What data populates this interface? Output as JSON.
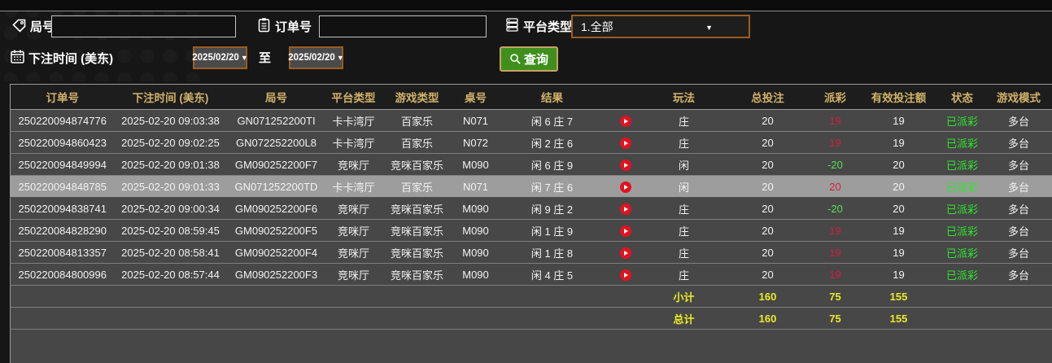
{
  "form": {
    "game_no": {
      "label": "局号",
      "value": "",
      "placeholder": ""
    },
    "order_no": {
      "label": "订单号",
      "value": "",
      "placeholder": ""
    },
    "platform": {
      "label": "平台类型",
      "value": "1.全部"
    },
    "bet_time": {
      "label": "下注时间 (美东)",
      "from": "2025/02/20",
      "to_label": "至",
      "to": "2025/02/20"
    },
    "query": {
      "label": "查询"
    }
  },
  "table": {
    "headers": [
      "订单号",
      "下注时间 (美东)",
      "局号",
      "平台类型",
      "游戏类型",
      "桌号",
      "结果",
      "",
      "玩法",
      "总投注",
      "派彩",
      "有效投注额",
      "状态",
      "游戏模式"
    ],
    "rows": [
      {
        "order_no": "250220094874776",
        "bet_time": "2025-02-20 09:03:38",
        "game_no": "GN071252200TI",
        "platform": "卡卡湾厅",
        "game_type": "百家乐",
        "table_no": "N071",
        "result": "闲 6 庄 7",
        "play": "庄",
        "total_bet": "20",
        "payout": "19",
        "payout_color": "win",
        "valid_bet": "19",
        "status": "已派彩",
        "game_mode": "多台",
        "highlighted": false
      },
      {
        "order_no": "250220094860423",
        "bet_time": "2025-02-20 09:02:25",
        "game_no": "GN072252200L8",
        "platform": "卡卡湾厅",
        "game_type": "百家乐",
        "table_no": "N072",
        "result": "闲 2 庄 6",
        "play": "庄",
        "total_bet": "20",
        "payout": "19",
        "payout_color": "win",
        "valid_bet": "19",
        "status": "已派彩",
        "game_mode": "多台",
        "highlighted": false
      },
      {
        "order_no": "250220094849994",
        "bet_time": "2025-02-20 09:01:38",
        "game_no": "GM090252200F7",
        "platform": "竞咪厅",
        "game_type": "竞咪百家乐",
        "table_no": "M090",
        "result": "闲 6 庄 9",
        "play": "闲",
        "total_bet": "20",
        "payout": "-20",
        "payout_color": "lose",
        "valid_bet": "20",
        "status": "已派彩",
        "game_mode": "多台",
        "highlighted": false
      },
      {
        "order_no": "250220094848785",
        "bet_time": "2025-02-20 09:01:33",
        "game_no": "GN071252200TD",
        "platform": "卡卡湾厅",
        "game_type": "百家乐",
        "table_no": "N071",
        "result": "闲 7 庄 6",
        "play": "闲",
        "total_bet": "20",
        "payout": "20",
        "payout_color": "win",
        "valid_bet": "20",
        "status": "已派彩",
        "game_mode": "多台",
        "highlighted": true
      },
      {
        "order_no": "250220094838741",
        "bet_time": "2025-02-20 09:00:34",
        "game_no": "GM090252200F6",
        "platform": "竞咪厅",
        "game_type": "竞咪百家乐",
        "table_no": "M090",
        "result": "闲 9 庄 2",
        "play": "庄",
        "total_bet": "20",
        "payout": "-20",
        "payout_color": "lose",
        "valid_bet": "20",
        "status": "已派彩",
        "game_mode": "多台",
        "highlighted": false
      },
      {
        "order_no": "250220084828290",
        "bet_time": "2025-02-20 08:59:45",
        "game_no": "GM090252200F5",
        "platform": "竞咪厅",
        "game_type": "竞咪百家乐",
        "table_no": "M090",
        "result": "闲 1 庄 9",
        "play": "庄",
        "total_bet": "20",
        "payout": "19",
        "payout_color": "win",
        "valid_bet": "19",
        "status": "已派彩",
        "game_mode": "多台",
        "highlighted": false
      },
      {
        "order_no": "250220084813357",
        "bet_time": "2025-02-20 08:58:41",
        "game_no": "GM090252200F4",
        "platform": "竞咪厅",
        "game_type": "竞咪百家乐",
        "table_no": "M090",
        "result": "闲 1 庄 8",
        "play": "庄",
        "total_bet": "20",
        "payout": "19",
        "payout_color": "win",
        "valid_bet": "19",
        "status": "已派彩",
        "game_mode": "多台",
        "highlighted": false
      },
      {
        "order_no": "250220084800996",
        "bet_time": "2025-02-20 08:57:44",
        "game_no": "GM090252200F3",
        "platform": "竞咪厅",
        "game_type": "竞咪百家乐",
        "table_no": "M090",
        "result": "闲 4 庄 5",
        "play": "庄",
        "total_bet": "20",
        "payout": "19",
        "payout_color": "win",
        "valid_bet": "19",
        "status": "已派彩",
        "game_mode": "多台",
        "highlighted": false
      }
    ],
    "footer": [
      {
        "label": "小计",
        "total_bet": "160",
        "payout": "75",
        "valid_bet": "155"
      },
      {
        "label": "总计",
        "total_bet": "160",
        "payout": "75",
        "valid_bet": "155"
      }
    ]
  },
  "colors": {
    "header_text": "#d2b269",
    "payout_win": "#d31c44",
    "payout_lose": "#55e055",
    "status_paid": "#2ee52e",
    "footer_text": "#e9eb25",
    "query_green": "#3f8f1d",
    "accent_border": "#9c5d20",
    "row_bg": "#474747",
    "highlight_bg": "#9d9d9d",
    "play_red": "#e31220"
  }
}
